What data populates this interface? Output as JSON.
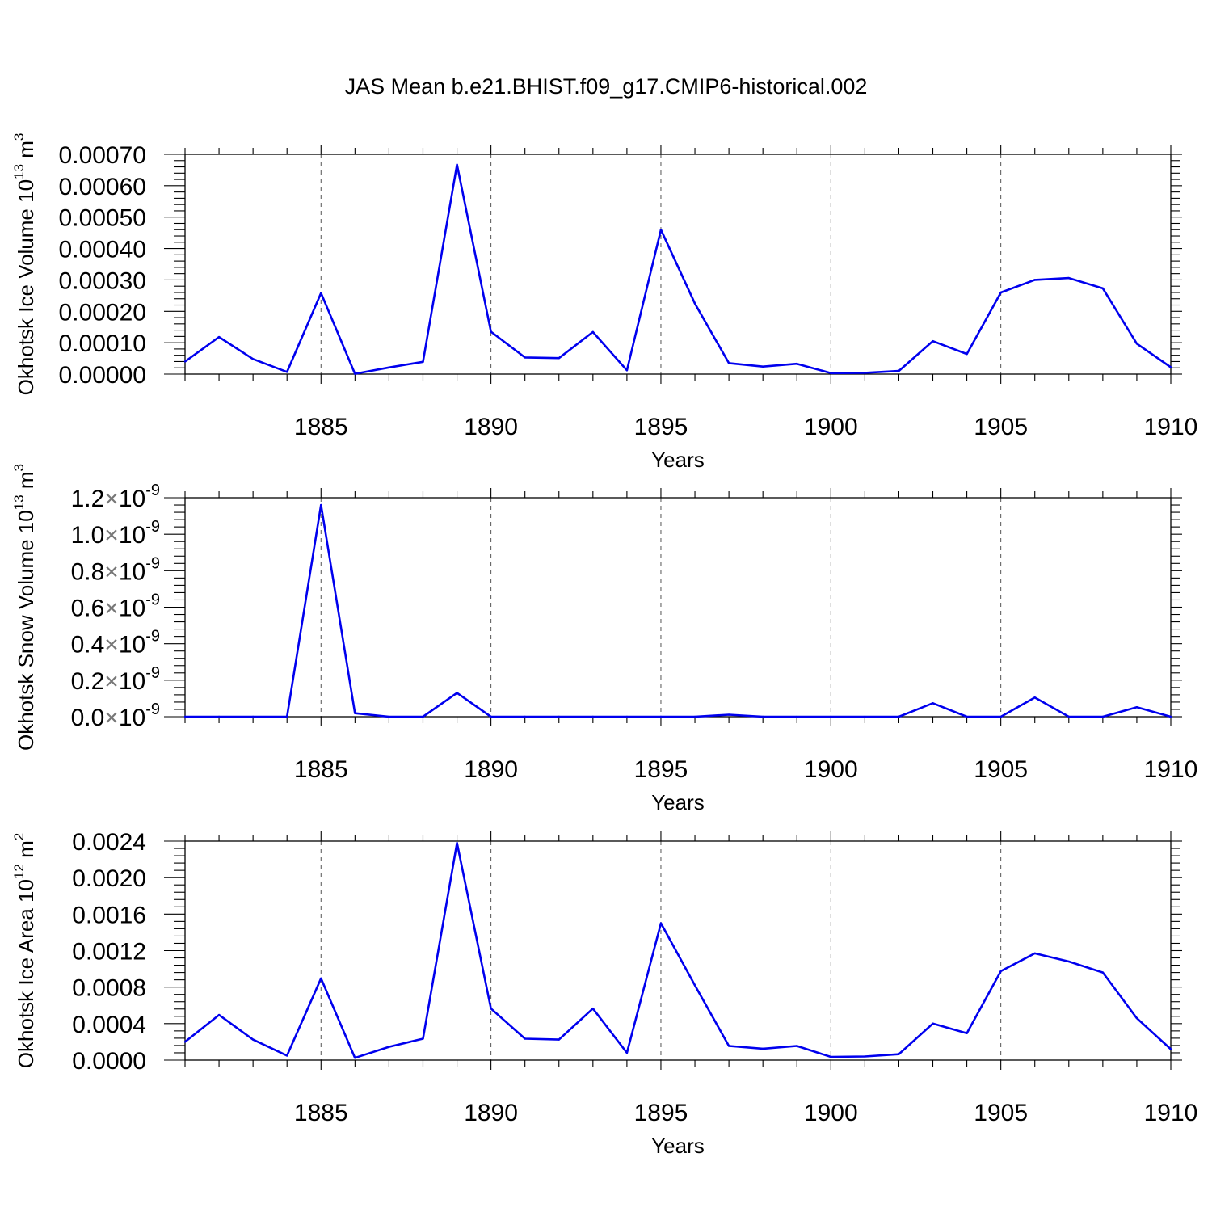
{
  "title": "JAS Mean b.e21.BHIST.f09_g17.CMIP6-historical.002",
  "chart_data": [
    {
      "type": "line",
      "title": "JAS Mean b.e21.BHIST.f09_g17.CMIP6-historical.002",
      "ylabel": "Okhotsk Ice Volume 10",
      "ylabel_exp": "13",
      "ylabel_unit": " m",
      "ylabel_unit_exp": "3",
      "xlabel": "Years",
      "xlim": [
        1881,
        1910
      ],
      "ylim": [
        0,
        0.0007
      ],
      "x_ticks": [
        1885,
        1890,
        1895,
        1900,
        1905,
        1910
      ],
      "x_tick_labels": [
        "1885",
        "1890",
        "1895",
        "1900",
        "1905",
        "1910"
      ],
      "y_ticks": [
        0,
        0.0001,
        0.0002,
        0.0003,
        0.0004,
        0.0005,
        0.0006,
        0.0007
      ],
      "y_tick_labels": [
        "0.00000",
        "0.00010",
        "0.00020",
        "0.00030",
        "0.00040",
        "0.00050",
        "0.00060",
        "0.00070"
      ],
      "y_tick_exp": "",
      "color": "#0000ee",
      "x": [
        1881,
        1882,
        1883,
        1884,
        1885,
        1886,
        1887,
        1888,
        1889,
        1890,
        1891,
        1892,
        1893,
        1894,
        1895,
        1896,
        1897,
        1898,
        1899,
        1900,
        1901,
        1902,
        1903,
        1904,
        1905,
        1906,
        1907,
        1908,
        1909,
        1910
      ],
      "values": [
        4e-05,
        0.000118,
        4.8e-05,
        7e-06,
        0.000258,
        1e-06,
        2.1e-05,
        3.9e-05,
        0.000667,
        0.000135,
        5.3e-05,
        5.1e-05,
        0.000134,
        1.2e-05,
        0.00046,
        0.000225,
        3.5e-05,
        2.4e-05,
        3.3e-05,
        3e-06,
        4e-06,
        1e-05,
        0.000105,
        6.4e-05,
        0.00026,
        0.0003,
        0.000306,
        0.000273,
        9.7e-05,
        2.2e-05
      ]
    },
    {
      "type": "line",
      "ylabel": "Okhotsk Snow Volume 10",
      "ylabel_exp": "13",
      "ylabel_unit": " m",
      "ylabel_unit_exp": "3",
      "xlabel": "Years",
      "xlim": [
        1881,
        1910
      ],
      "ylim": [
        0,
        1.2e-09
      ],
      "x_ticks": [
        1885,
        1890,
        1895,
        1900,
        1905,
        1910
      ],
      "x_tick_labels": [
        "1885",
        "1890",
        "1895",
        "1900",
        "1905",
        "1910"
      ],
      "y_ticks": [
        0,
        2e-10,
        4e-10,
        6e-10,
        8e-10,
        1e-09,
        1.2e-09
      ],
      "y_tick_labels": [
        "0.0×10",
        "0.2×10",
        "0.4×10",
        "0.6×10",
        "0.8×10",
        "1.0×10",
        "1.2×10"
      ],
      "y_tick_exp": "-9",
      "color": "#0000ee",
      "x": [
        1881,
        1882,
        1883,
        1884,
        1885,
        1886,
        1887,
        1888,
        1889,
        1890,
        1891,
        1892,
        1893,
        1894,
        1895,
        1896,
        1897,
        1898,
        1899,
        1900,
        1901,
        1902,
        1903,
        1904,
        1905,
        1906,
        1907,
        1908,
        1909,
        1910
      ],
      "values": [
        0,
        0,
        0,
        0,
        1.16e-09,
        1.9e-11,
        0,
        0,
        1.3e-10,
        0,
        0,
        0,
        0,
        0,
        0,
        0,
        1.1e-11,
        0,
        0,
        0,
        0,
        0,
        7.4e-11,
        0,
        0,
        1.05e-10,
        0,
        0,
        5.2e-11,
        0
      ]
    },
    {
      "type": "line",
      "ylabel": "Okhotsk Ice Area 10",
      "ylabel_exp": "12",
      "ylabel_unit": " m",
      "ylabel_unit_exp": "2",
      "xlabel": "Years",
      "xlim": [
        1881,
        1910
      ],
      "ylim": [
        0,
        0.0024
      ],
      "x_ticks": [
        1885,
        1890,
        1895,
        1900,
        1905,
        1910
      ],
      "x_tick_labels": [
        "1885",
        "1890",
        "1895",
        "1900",
        "1905",
        "1910"
      ],
      "y_ticks": [
        0,
        0.0004,
        0.0008,
        0.0012,
        0.0016,
        0.002,
        0.0024
      ],
      "y_tick_labels": [
        "0.0000",
        "0.0004",
        "0.0008",
        "0.0012",
        "0.0016",
        "0.0020",
        "0.0024"
      ],
      "y_tick_exp": "",
      "color": "#0000ee",
      "x": [
        1881,
        1882,
        1883,
        1884,
        1885,
        1886,
        1887,
        1888,
        1889,
        1890,
        1891,
        1892,
        1893,
        1894,
        1895,
        1896,
        1897,
        1898,
        1899,
        1900,
        1901,
        1902,
        1903,
        1904,
        1905,
        1906,
        1907,
        1908,
        1909,
        1910
      ],
      "values": [
        0.0002,
        0.000495,
        0.000225,
        5e-05,
        0.000895,
        2.5e-05,
        0.000145,
        0.000235,
        0.00238,
        0.000565,
        0.000235,
        0.000225,
        0.000565,
        8e-05,
        0.0015,
        0.00082,
        0.000155,
        0.000125,
        0.000155,
        3.5e-05,
        4e-05,
        6.5e-05,
        0.0004,
        0.000295,
        0.000975,
        0.00117,
        0.00108,
        0.00096,
        0.00046,
        0.00012
      ]
    }
  ]
}
